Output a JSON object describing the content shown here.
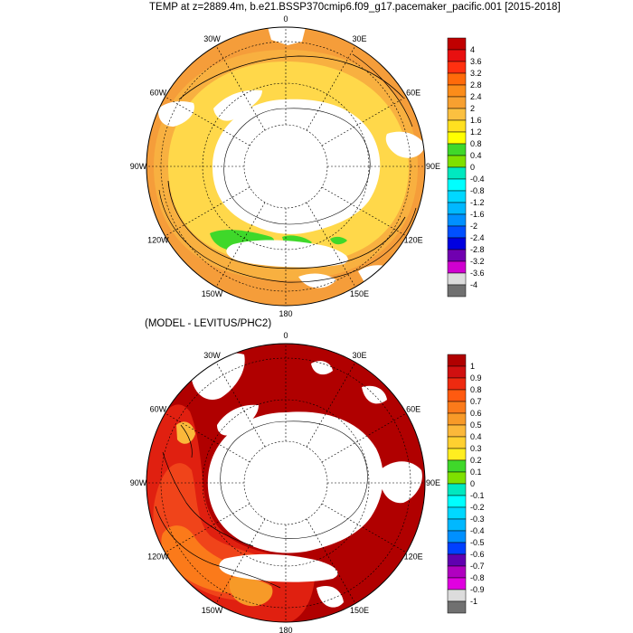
{
  "plots": [
    {
      "title": "TEMP at z=2889.4m, b.e21.BSSP370cmip6.f09_g17.pacemaker_pacific.001 [2015-2018]",
      "longitude_labels": [
        "0",
        "30E",
        "60E",
        "90E",
        "120E",
        "150E",
        "180",
        "150W",
        "120W",
        "90W",
        "60W",
        "30W"
      ],
      "colorbar": {
        "labels": [
          "4",
          "3.6",
          "3.2",
          "2.8",
          "2.4",
          "2",
          "1.6",
          "1.2",
          "0.8",
          "0.4",
          "0",
          "-0.4",
          "-0.8",
          "-1.2",
          "-1.6",
          "-2",
          "-2.4",
          "-2.8",
          "-3.2",
          "-3.6",
          "-4"
        ],
        "colors": [
          "#c00000",
          "#e81010",
          "#ff3010",
          "#ff6a0a",
          "#fb8c1a",
          "#f7a030",
          "#fbc040",
          "#ffe020",
          "#ffff00",
          "#3fd82a",
          "#7fe000",
          "#00e8c0",
          "#00ffff",
          "#00d8ff",
          "#00b8ff",
          "#0090ff",
          "#0050ff",
          "#0000e0",
          "#7000b0",
          "#d000d0",
          "#dcdcdc",
          "#707070"
        ]
      }
    },
    {
      "title": "(MODEL - LEVITUS/PHC2)",
      "longitude_labels": [
        "0",
        "30E",
        "60E",
        "90E",
        "120E",
        "150E",
        "180",
        "150W",
        "120W",
        "90W",
        "60W",
        "30W"
      ],
      "colorbar": {
        "labels": [
          "1",
          "0.9",
          "0.8",
          "0.7",
          "0.6",
          "0.5",
          "0.4",
          "0.3",
          "0.2",
          "0.1",
          "0",
          "-0.1",
          "-0.2",
          "-0.3",
          "-0.4",
          "-0.5",
          "-0.6",
          "-0.7",
          "-0.8",
          "-0.9",
          "-1"
        ],
        "colors": [
          "#b00000",
          "#d01010",
          "#ee2a10",
          "#ff5a10",
          "#fb7a1a",
          "#f79a28",
          "#fbb83a",
          "#ffd030",
          "#ffee20",
          "#3fd82a",
          "#7fe000",
          "#00e8c0",
          "#00ffff",
          "#00d8ff",
          "#00b8ff",
          "#0090ff",
          "#0040ff",
          "#6000b0",
          "#b000c0",
          "#e000e0",
          "#dcdcdc",
          "#707070"
        ]
      }
    }
  ]
}
